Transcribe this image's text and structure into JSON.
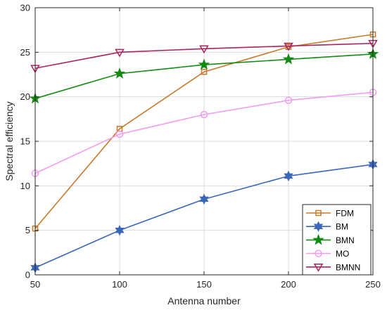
{
  "chart_data": {
    "type": "line",
    "xlabel": "Antenna number",
    "ylabel": "Spectral efficiency",
    "x": [
      50,
      100,
      150,
      200,
      250
    ],
    "xlim": [
      50,
      250
    ],
    "ylim": [
      0,
      30
    ],
    "xticks": [
      50,
      100,
      150,
      200,
      250
    ],
    "yticks": [
      0,
      5,
      10,
      15,
      20,
      25,
      30
    ],
    "grid": true,
    "legend_position": "bottom-right",
    "series": [
      {
        "name": "FDM",
        "color": "#c77a2a",
        "marker": "square",
        "values": [
          5.2,
          16.4,
          22.8,
          25.6,
          27.0
        ]
      },
      {
        "name": "BM",
        "color": "#3a67b8",
        "marker": "hexagram",
        "values": [
          0.8,
          5.0,
          8.5,
          11.1,
          12.4
        ]
      },
      {
        "name": "BMN",
        "color": "#138a13",
        "marker": "pentagram",
        "values": [
          19.8,
          22.6,
          23.6,
          24.2,
          24.8
        ]
      },
      {
        "name": "MO",
        "color": "#f29cf0",
        "marker": "circle",
        "values": [
          11.4,
          15.8,
          18.0,
          19.6,
          20.5
        ]
      },
      {
        "name": "BMNN",
        "color": "#a8255f",
        "marker": "triangle-down",
        "values": [
          23.2,
          25.0,
          25.4,
          25.7,
          26.0
        ]
      }
    ]
  }
}
